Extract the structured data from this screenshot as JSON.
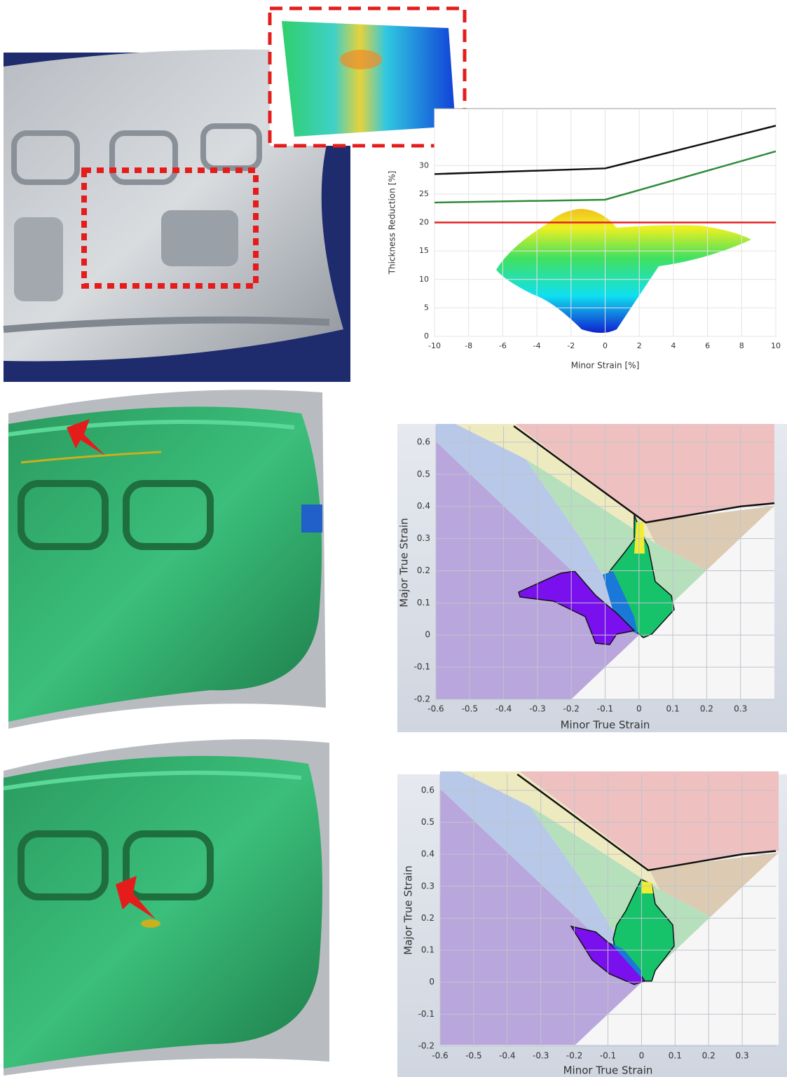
{
  "chart_data": [
    {
      "type": "line",
      "y_label": "Thickness Reduction [%]",
      "x_label": "Minor Strain [%]",
      "xlim": [
        -10,
        10
      ],
      "ylim": [
        0,
        40
      ],
      "xticks": [
        -10,
        -8,
        -6,
        -4,
        -2,
        0,
        2,
        4,
        6,
        8,
        10
      ],
      "yticks": [
        0,
        5,
        10,
        15,
        20,
        25,
        30
      ],
      "grid": true,
      "series": [
        {
          "color": "#111111",
          "x": [
            -10,
            0,
            10
          ],
          "values": [
            28.5,
            29.5,
            37
          ]
        },
        {
          "color": "#2e8b3a",
          "x": [
            -10,
            0,
            10
          ],
          "values": [
            23.5,
            24,
            32.5
          ]
        },
        {
          "color": "#e02020",
          "x": [
            -10,
            10
          ],
          "values": [
            20,
            20
          ]
        }
      ]
    },
    {
      "type": "line",
      "y_label": "Major True Strain",
      "x_label": "Minor True Strain",
      "xlim": [
        -0.6,
        0.4
      ],
      "ylim": [
        -0.2,
        0.65
      ],
      "xticks": [
        -0.6,
        -0.5,
        -0.4,
        -0.3,
        -0.2,
        -0.1,
        0,
        0.1,
        0.2,
        0.3
      ],
      "yticks": [
        -0.2,
        -0.1,
        0,
        0.1,
        0.2,
        0.3,
        0.4,
        0.5,
        0.6
      ],
      "grid": true,
      "series": [
        {
          "color": "#111111",
          "x": [
            -0.37,
            0.02,
            0.3,
            0.4
          ],
          "values": [
            0.65,
            0.35,
            0.4,
            0.41
          ]
        }
      ]
    },
    {
      "type": "line",
      "y_label": "Major True Strain",
      "x_label": "Minor True Strain",
      "xlim": [
        -0.6,
        0.4
      ],
      "ylim": [
        -0.2,
        0.65
      ],
      "xticks": [
        -0.6,
        -0.5,
        -0.4,
        -0.3,
        -0.2,
        -0.1,
        0,
        0.1,
        0.2,
        0.3
      ],
      "yticks": [
        -0.2,
        -0.1,
        0,
        0.1,
        0.2,
        0.3,
        0.4,
        0.5,
        0.6
      ],
      "grid": true,
      "series": [
        {
          "color": "#111111",
          "x": [
            -0.37,
            0.02,
            0.3,
            0.4
          ],
          "values": [
            0.65,
            0.35,
            0.4,
            0.41
          ]
        }
      ]
    }
  ]
}
